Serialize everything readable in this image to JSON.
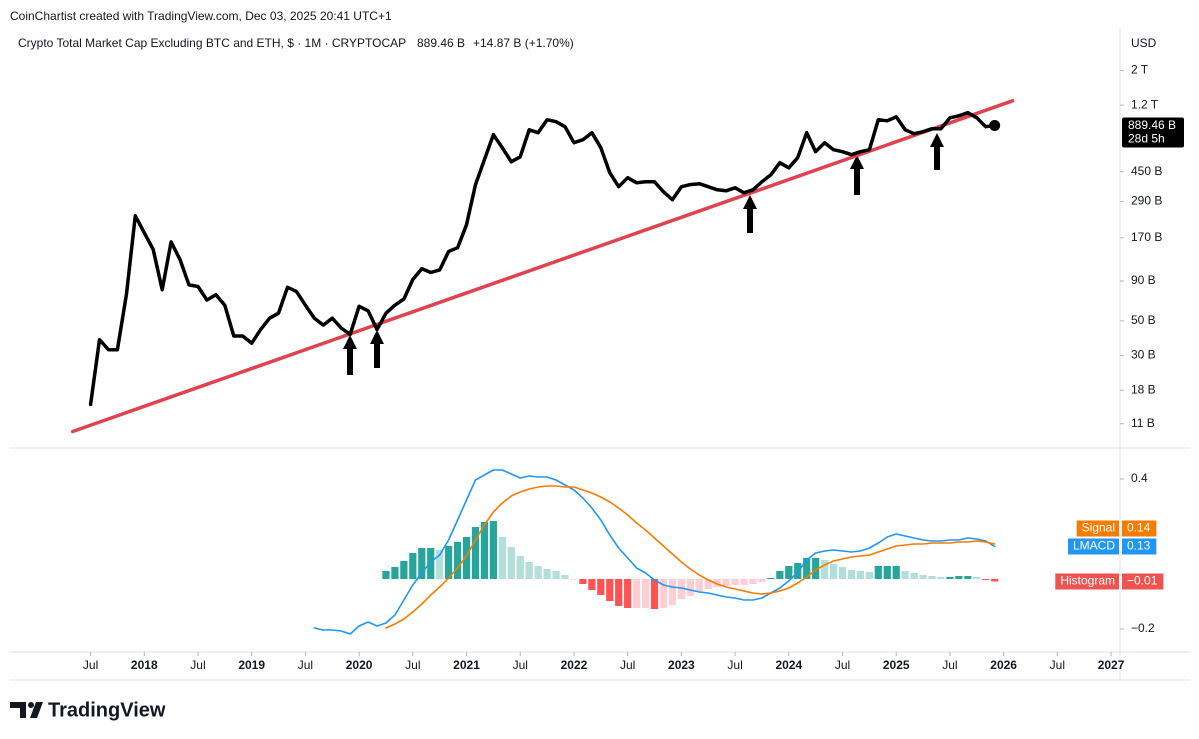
{
  "header": "CoinChartist created with TradingView.com, Dec 03, 2025 20:41 UTC+1",
  "footer": "TradingView",
  "chart_data": [
    {
      "type": "line",
      "title": "Crypto Total Market Cap Excluding BTC and ETH, $ · 1M · CRYPTOCAP",
      "change": "+14.87 B (+1.70%)",
      "currency": "USD",
      "countdown": "28d 5h",
      "log_scale": true,
      "grid": false,
      "xlim": [
        "2016-10",
        "2027-02"
      ],
      "ylim": [
        7.8,
        3630
      ],
      "yticks": [
        {
          "value": 2000,
          "label": "2 T"
        },
        {
          "value": 1200,
          "label": "1.2 T"
        },
        {
          "value": 450,
          "label": "450 B"
        },
        {
          "value": 290,
          "label": "290 B"
        },
        {
          "value": 170,
          "label": "170 B"
        },
        {
          "value": 90,
          "label": "90 B"
        },
        {
          "value": 50,
          "label": "50 B"
        },
        {
          "value": 30,
          "label": "30 B"
        },
        {
          "value": 18,
          "label": "18 B"
        },
        {
          "value": 11,
          "label": "11 B"
        }
      ],
      "x": [
        "2017-07",
        "2017-08",
        "2017-09",
        "2017-10",
        "2017-11",
        "2017-12",
        "2018-01",
        "2018-02",
        "2018-03",
        "2018-04",
        "2018-05",
        "2018-06",
        "2018-07",
        "2018-08",
        "2018-09",
        "2018-10",
        "2018-11",
        "2018-12",
        "2019-01",
        "2019-02",
        "2019-03",
        "2019-04",
        "2019-05",
        "2019-06",
        "2019-07",
        "2019-08",
        "2019-09",
        "2019-10",
        "2019-11",
        "2019-12",
        "2020-01",
        "2020-02",
        "2020-03",
        "2020-04",
        "2020-05",
        "2020-06",
        "2020-07",
        "2020-08",
        "2020-09",
        "2020-10",
        "2020-11",
        "2020-12",
        "2021-01",
        "2021-02",
        "2021-03",
        "2021-04",
        "2021-05",
        "2021-06",
        "2021-07",
        "2021-08",
        "2021-09",
        "2021-10",
        "2021-11",
        "2021-12",
        "2022-01",
        "2022-02",
        "2022-03",
        "2022-04",
        "2022-05",
        "2022-06",
        "2022-07",
        "2022-08",
        "2022-09",
        "2022-10",
        "2022-11",
        "2022-12",
        "2023-01",
        "2023-02",
        "2023-03",
        "2023-04",
        "2023-05",
        "2023-06",
        "2023-07",
        "2023-08",
        "2023-09",
        "2023-10",
        "2023-11",
        "2023-12",
        "2024-01",
        "2024-02",
        "2024-03",
        "2024-04",
        "2024-05",
        "2024-06",
        "2024-07",
        "2024-08",
        "2024-09",
        "2024-10",
        "2024-11",
        "2024-12",
        "2025-01",
        "2025-02",
        "2025-03",
        "2025-04",
        "2025-05",
        "2025-06",
        "2025-07",
        "2025-08",
        "2025-09",
        "2025-10",
        "2025-11",
        "2025-12"
      ],
      "series": [
        {
          "color": "#000000",
          "values": [
            14.6,
            37.9,
            32.7,
            32.7,
            73.5,
            235,
            183,
            143,
            79,
            160,
            123,
            85,
            83,
            68,
            73.5,
            63,
            40,
            40,
            36,
            44,
            52,
            56,
            82,
            77,
            63,
            52,
            47,
            52,
            45,
            41,
            62,
            58,
            44,
            56,
            63,
            69,
            92,
            108,
            102,
            106,
            139,
            147,
            206,
            372,
            537,
            776,
            641,
            521,
            561,
            835,
            800,
            968,
            940,
            873,
            690,
            721,
            800,
            641,
            443,
            361,
            412,
            382,
            388,
            388,
            335,
            298,
            361,
            372,
            377,
            361,
            345,
            340,
            355,
            330,
            345,
            388,
            430,
            514,
            477,
            553,
            800,
            604,
            690,
            622,
            604,
            578,
            604,
            622,
            968,
            953,
            1011,
            835,
            788,
            811,
            848,
            848,
            996,
            1026,
            1073,
            996,
            873,
            889.46
          ],
          "value_labels": [
            null,
            null,
            null,
            null,
            null,
            null,
            null,
            null,
            null,
            null,
            null,
            null,
            null,
            null,
            null,
            null,
            null,
            null,
            null,
            null,
            null,
            null,
            null,
            null,
            null,
            null,
            null,
            null,
            null,
            null,
            null,
            null,
            null,
            null,
            null,
            null,
            null,
            null,
            null,
            null,
            null,
            null,
            null,
            null,
            null,
            null,
            null,
            null,
            null,
            null,
            null,
            null,
            null,
            null,
            null,
            null,
            null,
            null,
            null,
            null,
            null,
            null,
            null,
            null,
            null,
            null,
            null,
            null,
            null,
            null,
            null,
            null,
            null,
            null,
            null,
            null,
            null,
            null,
            null,
            null,
            null,
            null,
            null,
            null,
            null,
            null,
            null,
            null,
            null,
            null,
            null,
            null,
            null,
            null,
            null,
            null,
            null,
            null,
            null,
            null,
            null,
            "889.46 B"
          ]
        }
      ],
      "trendline": {
        "x": [
          "2017-05",
          "2026-02"
        ],
        "values": [
          9.8,
          1280
        ],
        "color": "#e0424f"
      }
    },
    {
      "type": "macd",
      "xlim": [
        "2016-10",
        "2027-02"
      ],
      "ylim": [
        -0.292,
        0.52
      ],
      "yticks": [
        0.4,
        {
          "value": -0.2,
          "label": "−0.2"
        }
      ],
      "xticks": [
        {
          "value": "2017-07",
          "label": "Jul"
        },
        {
          "value": "2018-01",
          "label": "2018"
        },
        {
          "value": "2018-07",
          "label": "Jul"
        },
        {
          "value": "2019-01",
          "label": "2019"
        },
        {
          "value": "2019-07",
          "label": "Jul"
        },
        {
          "value": "2020-01",
          "label": "2020"
        },
        {
          "value": "2020-07",
          "label": "Jul"
        },
        {
          "value": "2021-01",
          "label": "2021"
        },
        {
          "value": "2021-07",
          "label": "Jul"
        },
        {
          "value": "2022-01",
          "label": "2022"
        },
        {
          "value": "2022-07",
          "label": "Jul"
        },
        {
          "value": "2023-01",
          "label": "2023"
        },
        {
          "value": "2023-07",
          "label": "Jul"
        },
        {
          "value": "2024-01",
          "label": "2024"
        },
        {
          "value": "2024-07",
          "label": "Jul"
        },
        {
          "value": "2025-01",
          "label": "2025"
        },
        {
          "value": "2025-07",
          "label": "Jul"
        },
        {
          "value": "2026-01",
          "label": "2026"
        },
        {
          "value": "2026-07",
          "label": "Jul"
        },
        {
          "value": "2027-01",
          "label": "2027"
        }
      ],
      "x": [
        "2019-08",
        "2019-09",
        "2019-10",
        "2019-11",
        "2019-12",
        "2020-01",
        "2020-02",
        "2020-03",
        "2020-04",
        "2020-05",
        "2020-06",
        "2020-07",
        "2020-08",
        "2020-09",
        "2020-10",
        "2020-11",
        "2020-12",
        "2021-01",
        "2021-02",
        "2021-03",
        "2021-04",
        "2021-05",
        "2021-06",
        "2021-07",
        "2021-08",
        "2021-09",
        "2021-10",
        "2021-11",
        "2021-12",
        "2022-01",
        "2022-02",
        "2022-03",
        "2022-04",
        "2022-05",
        "2022-06",
        "2022-07",
        "2022-08",
        "2022-09",
        "2022-10",
        "2022-11",
        "2022-12",
        "2023-01",
        "2023-02",
        "2023-03",
        "2023-04",
        "2023-05",
        "2023-06",
        "2023-07",
        "2023-08",
        "2023-09",
        "2023-10",
        "2023-11",
        "2023-12",
        "2024-01",
        "2024-02",
        "2024-03",
        "2024-04",
        "2024-05",
        "2024-06",
        "2024-07",
        "2024-08",
        "2024-09",
        "2024-10",
        "2024-11",
        "2024-12",
        "2025-01",
        "2025-02",
        "2025-03",
        "2025-04",
        "2025-05",
        "2025-06",
        "2025-07",
        "2025-08",
        "2025-09",
        "2025-10",
        "2025-11",
        "2025-12"
      ],
      "series": [
        {
          "name": "Histogram",
          "type": "bar",
          "color": "#ef5350",
          "colors": [
            "#26a69a",
            "#b2dfdb",
            "#ffcdd2",
            "#ff5252"
          ],
          "values": [
            null,
            null,
            null,
            null,
            null,
            null,
            null,
            null,
            0.032,
            0.048,
            0.072,
            0.104,
            0.124,
            0.124,
            0.116,
            0.132,
            0.148,
            0.168,
            0.208,
            0.228,
            0.232,
            0.168,
            0.128,
            0.092,
            0.068,
            0.052,
            0.04,
            0.032,
            0.016,
            0,
            -0.02,
            -0.044,
            -0.064,
            -0.088,
            -0.108,
            -0.116,
            -0.116,
            -0.116,
            -0.12,
            -0.116,
            -0.104,
            -0.08,
            -0.068,
            -0.052,
            -0.04,
            -0.032,
            -0.028,
            -0.024,
            -0.024,
            -0.02,
            -0.012,
            0.004,
            0.032,
            0.052,
            0.064,
            0.084,
            0.084,
            0.076,
            0.06,
            0.048,
            0.036,
            0.032,
            0.028,
            0.052,
            0.052,
            0.052,
            0.032,
            0.024,
            0.016,
            0.012,
            0.008,
            0.008,
            0.012,
            0.012,
            0.008,
            -0.004,
            -0.01
          ],
          "value_labels": [
            null,
            null,
            null,
            null,
            null,
            null,
            null,
            null,
            null,
            null,
            null,
            null,
            null,
            null,
            null,
            null,
            null,
            null,
            null,
            null,
            null,
            null,
            null,
            null,
            null,
            null,
            null,
            null,
            null,
            null,
            null,
            null,
            null,
            null,
            null,
            null,
            null,
            null,
            null,
            null,
            null,
            null,
            null,
            null,
            null,
            null,
            null,
            null,
            null,
            null,
            null,
            null,
            null,
            null,
            null,
            null,
            null,
            null,
            null,
            null,
            null,
            null,
            null,
            null,
            null,
            null,
            null,
            null,
            null,
            null,
            null,
            null,
            null,
            null,
            null,
            null,
            "−0.01"
          ]
        },
        {
          "name": "LMACD",
          "type": "line",
          "color": "#2196f3",
          "values": [
            -0.196,
            -0.204,
            -0.204,
            -0.208,
            -0.22,
            -0.188,
            -0.172,
            -0.188,
            -0.176,
            -0.144,
            -0.084,
            -0.024,
            0.024,
            0.068,
            0.096,
            0.156,
            0.236,
            0.316,
            0.396,
            0.416,
            0.436,
            0.436,
            0.42,
            0.404,
            0.412,
            0.408,
            0.408,
            0.396,
            0.376,
            0.356,
            0.324,
            0.284,
            0.236,
            0.176,
            0.124,
            0.084,
            0.044,
            0.024,
            -0.004,
            -0.024,
            -0.032,
            -0.036,
            -0.044,
            -0.052,
            -0.056,
            -0.064,
            -0.072,
            -0.076,
            -0.084,
            -0.084,
            -0.076,
            -0.056,
            -0.036,
            -0.008,
            0.028,
            0.076,
            0.104,
            0.112,
            0.116,
            0.112,
            0.108,
            0.112,
            0.124,
            0.144,
            0.168,
            0.18,
            0.172,
            0.164,
            0.156,
            0.152,
            0.152,
            0.156,
            0.156,
            0.164,
            0.16,
            0.152,
            0.13
          ]
        },
        {
          "name": "Signal",
          "type": "line",
          "color": "#f57c00",
          "values": [
            null,
            null,
            null,
            null,
            null,
            null,
            null,
            null,
            -0.196,
            -0.18,
            -0.16,
            -0.132,
            -0.1,
            -0.064,
            -0.032,
            0.004,
            0.044,
            0.092,
            0.156,
            0.216,
            0.268,
            0.304,
            0.332,
            0.348,
            0.36,
            0.368,
            0.372,
            0.372,
            0.368,
            0.368,
            0.356,
            0.344,
            0.328,
            0.308,
            0.284,
            0.256,
            0.224,
            0.196,
            0.164,
            0.132,
            0.1,
            0.068,
            0.04,
            0.016,
            -0.004,
            -0.02,
            -0.032,
            -0.04,
            -0.048,
            -0.056,
            -0.06,
            -0.056,
            -0.048,
            -0.036,
            -0.016,
            0.008,
            0.036,
            0.056,
            0.072,
            0.08,
            0.088,
            0.092,
            0.096,
            0.108,
            0.12,
            0.132,
            0.136,
            0.14,
            0.14,
            0.144,
            0.144,
            0.144,
            0.148,
            0.148,
            0.152,
            0.148,
            0.14
          ]
        }
      ]
    }
  ]
}
